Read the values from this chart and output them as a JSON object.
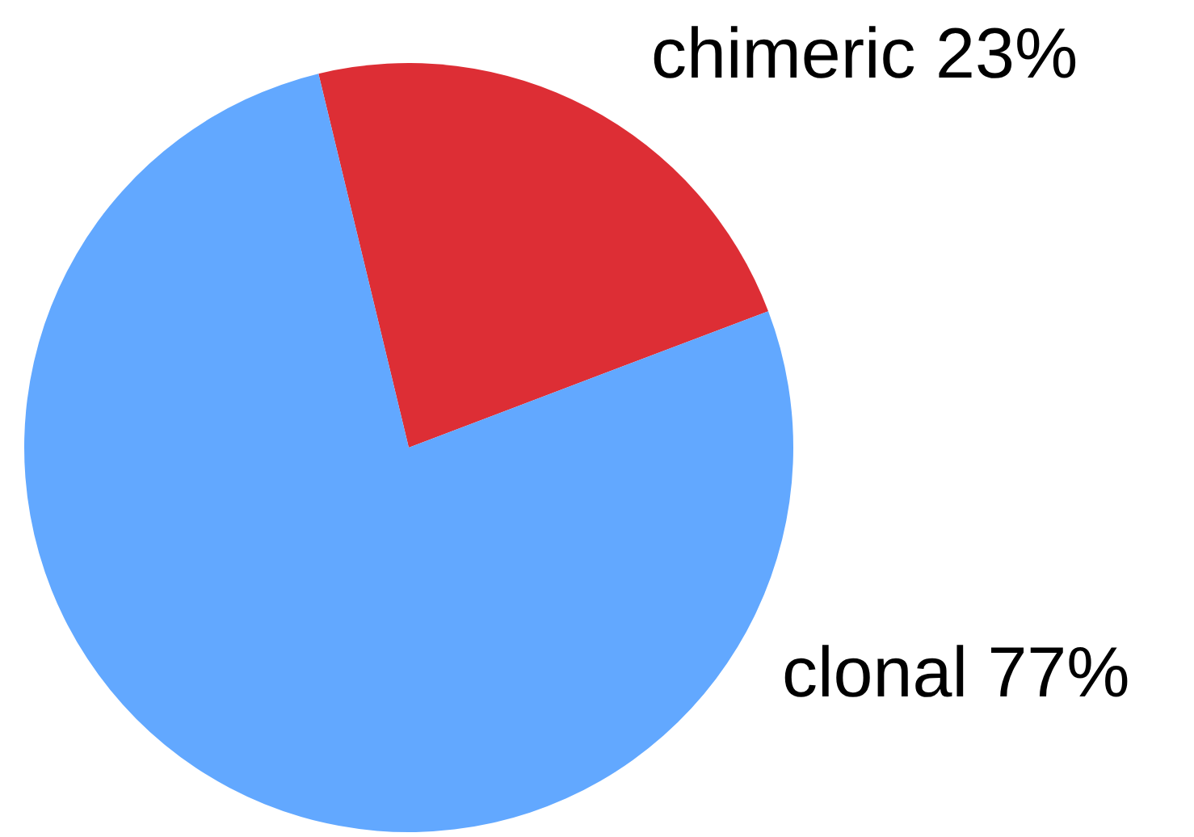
{
  "chart_data": {
    "type": "pie",
    "categories": [
      "chimeric",
      "clonal"
    ],
    "values": [
      23,
      77
    ],
    "value_labels": [
      "23%",
      "77%"
    ],
    "colors": [
      "#dd2e35",
      "#62a8ff"
    ]
  }
}
